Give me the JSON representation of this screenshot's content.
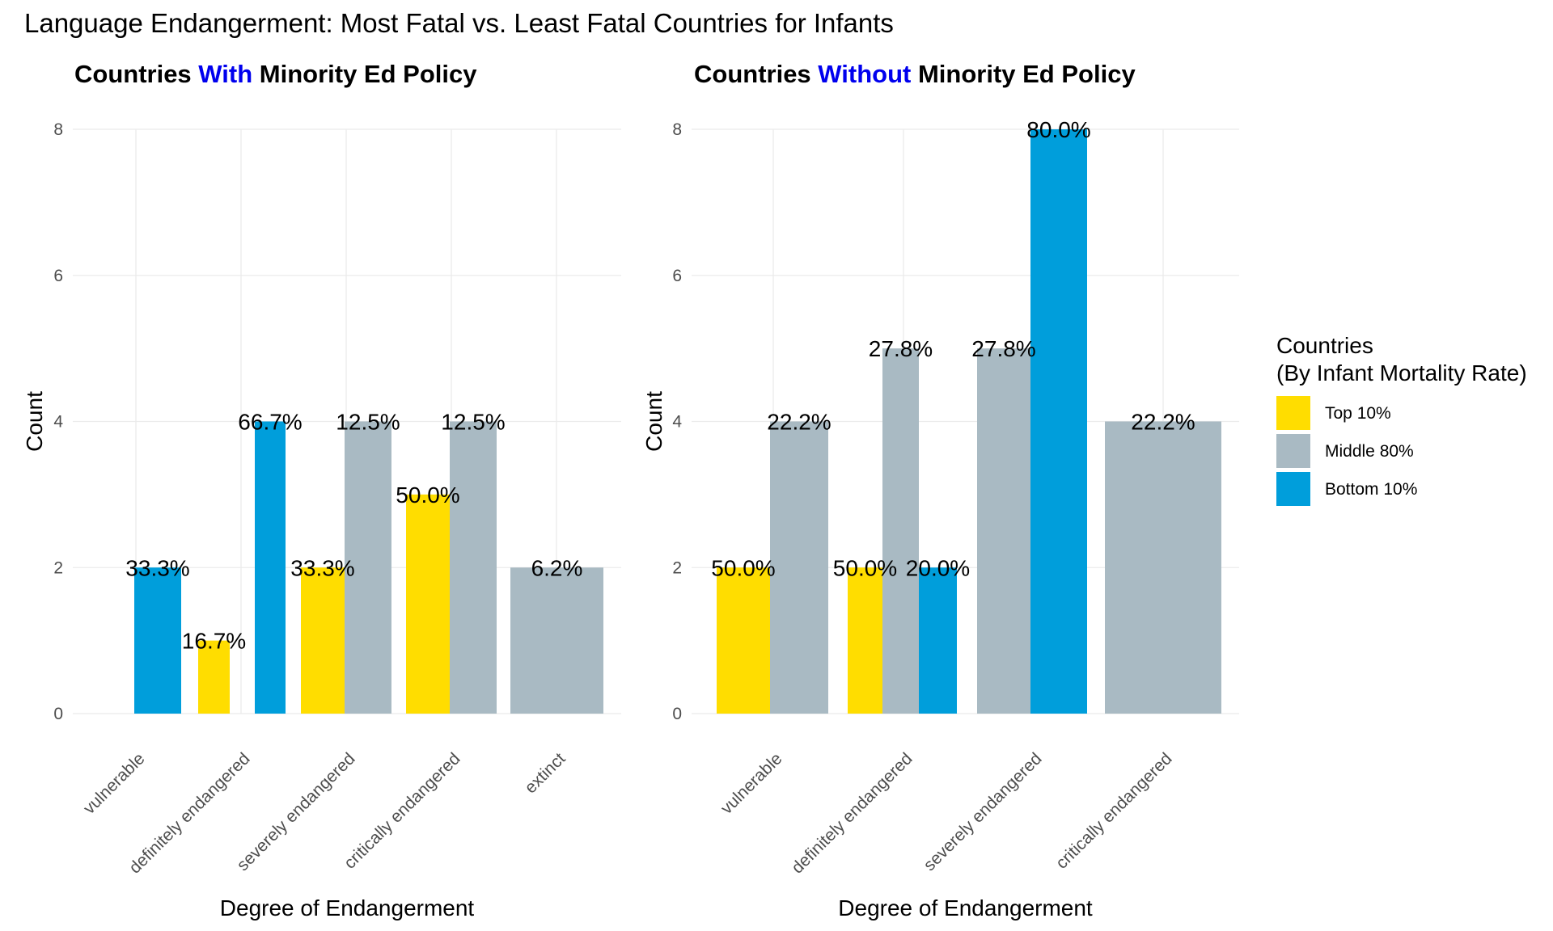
{
  "main_title": "Language Endangerment: Most Fatal vs. Least Fatal Countries for Infants",
  "colors": {
    "Top 10%": "#ffdd00",
    "Middle 80%": "#a9bac3",
    "Bottom 10%": "#009edb",
    "title_highlight": "#0000ee"
  },
  "legend": {
    "title_lines": [
      "Countries",
      "(By Infant Mortality Rate)"
    ],
    "entries": [
      {
        "label": "Top 10%",
        "color": "#ffdd00"
      },
      {
        "label": "Middle 80%",
        "color": "#a9bac3"
      },
      {
        "label": "Bottom 10%",
        "color": "#009edb"
      }
    ]
  },
  "chart_data": [
    {
      "type": "bar",
      "title_parts": [
        {
          "text": "Countries ",
          "highlight": false
        },
        {
          "text": "With",
          "highlight": true
        },
        {
          "text": " Minority Ed Policy",
          "highlight": false
        }
      ],
      "xlabel": "Degree of Endangerment",
      "ylabel": "Count",
      "ylim": [
        0,
        8
      ],
      "yticks": [
        0,
        2,
        4,
        6,
        8
      ],
      "categories": [
        "vulnerable",
        "definitely endangered",
        "severely endangered",
        "critically endangered",
        "extinct"
      ],
      "bars": [
        {
          "category": "vulnerable",
          "group": "Bottom 10%",
          "value": 2,
          "label": "33.3%"
        },
        {
          "category": "definitely endangered",
          "group": "Top 10%",
          "value": 1,
          "label": "16.7%"
        },
        {
          "category": "definitely endangered",
          "group": "Bottom 10%",
          "value": 4,
          "label": "66.7%"
        },
        {
          "category": "severely endangered",
          "group": "Top 10%",
          "value": 2,
          "label": "33.3%"
        },
        {
          "category": "severely endangered",
          "group": "Middle 80%",
          "value": 4,
          "label": "12.5%"
        },
        {
          "category": "critically endangered",
          "group": "Top 10%",
          "value": 3,
          "label": "50.0%"
        },
        {
          "category": "critically endangered",
          "group": "Middle 80%",
          "value": 4,
          "label": "12.5%"
        },
        {
          "category": "extinct",
          "group": "Middle 80%",
          "value": 2,
          "label": "6.2%"
        }
      ],
      "grid": true
    },
    {
      "type": "bar",
      "title_parts": [
        {
          "text": "Countries ",
          "highlight": false
        },
        {
          "text": "Without",
          "highlight": true
        },
        {
          "text": " Minority Ed Policy",
          "highlight": false
        }
      ],
      "xlabel": "Degree of Endangerment",
      "ylabel": "Count",
      "ylim": [
        0,
        8
      ],
      "yticks": [
        0,
        2,
        4,
        6,
        8
      ],
      "categories": [
        "vulnerable",
        "definitely endangered",
        "severely endangered",
        "critically endangered"
      ],
      "bars": [
        {
          "category": "vulnerable",
          "group": "Top 10%",
          "value": 2,
          "label": "50.0%"
        },
        {
          "category": "vulnerable",
          "group": "Middle 80%",
          "value": 4,
          "label": "22.2%"
        },
        {
          "category": "definitely endangered",
          "group": "Top 10%",
          "value": 2,
          "label": "50.0%"
        },
        {
          "category": "definitely endangered",
          "group": "Middle 80%",
          "value": 5,
          "label": "27.8%"
        },
        {
          "category": "definitely endangered",
          "group": "Bottom 10%",
          "value": 2,
          "label": "20.0%"
        },
        {
          "category": "severely endangered",
          "group": "Middle 80%",
          "value": 5,
          "label": "27.8%"
        },
        {
          "category": "severely endangered",
          "group": "Bottom 10%",
          "value": 8,
          "label": "80.0%"
        },
        {
          "category": "critically endangered",
          "group": "Middle 80%",
          "value": 4,
          "label": "22.2%"
        }
      ],
      "grid": true
    }
  ]
}
